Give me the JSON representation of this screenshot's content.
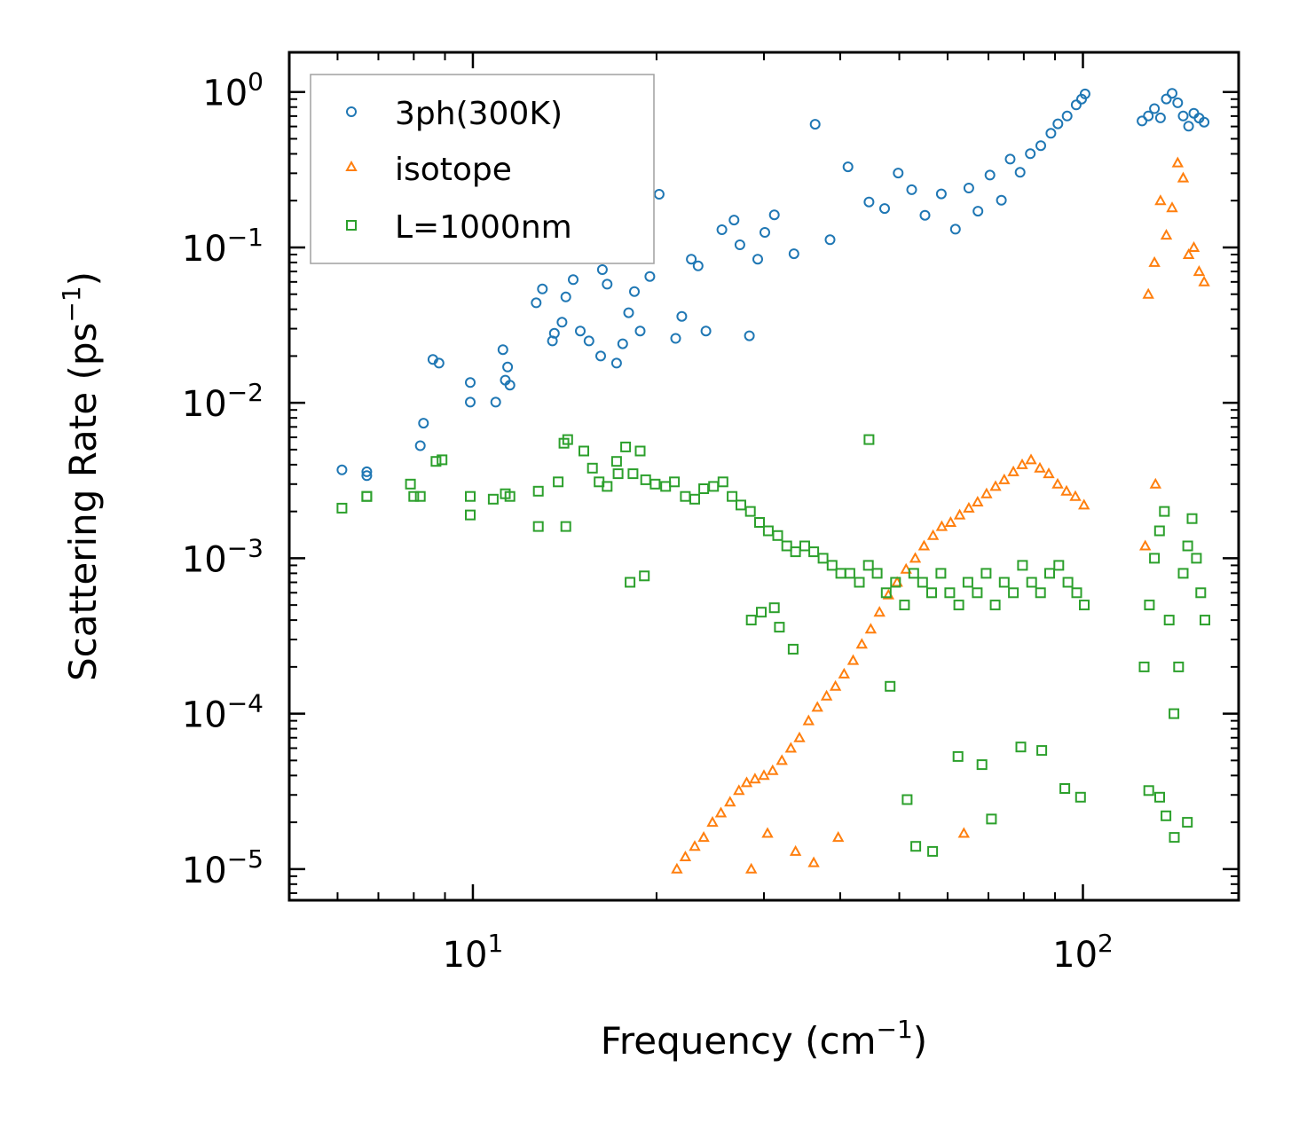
{
  "chart_data": {
    "type": "scatter",
    "title": "",
    "xlabel": "Frequency (cm",
    "xlabel_sup": "−1",
    "xlabel_suffix": ")",
    "ylabel": "Scattering Rate (ps",
    "ylabel_sup": "−1",
    "ylabel_suffix": ")",
    "xscale": "log",
    "yscale": "log",
    "xlim": [
      5.0,
      180.0
    ],
    "ylim": [
      6.3e-06,
      1.8
    ],
    "x_ticks": [
      {
        "value": 10,
        "base": "10",
        "exp": "1"
      },
      {
        "value": 100,
        "base": "10",
        "exp": "2"
      }
    ],
    "y_ticks": [
      {
        "value": 1,
        "base": "10",
        "exp": "0"
      },
      {
        "value": 0.1,
        "base": "10",
        "exp": "−1"
      },
      {
        "value": 0.01,
        "base": "10",
        "exp": "−2"
      },
      {
        "value": 0.001,
        "base": "10",
        "exp": "−3"
      },
      {
        "value": 0.0001,
        "base": "10",
        "exp": "−4"
      },
      {
        "value": 1e-05,
        "base": "10",
        "exp": "−5"
      }
    ],
    "legend_position": "top-left",
    "grid": false,
    "series": [
      {
        "name": "3ph(300K)",
        "color": "#1f77b4",
        "marker": "circle",
        "x": [
          6.1,
          6.7,
          6.7,
          8.2,
          8.3,
          8.6,
          8.8,
          9.9,
          9.9,
          10.9,
          11.2,
          11.3,
          11.4,
          11.5,
          12.7,
          13.0,
          13.5,
          13.6,
          14.0,
          14.2,
          14.6,
          15.0,
          15.5,
          16.2,
          16.3,
          16.6,
          17.2,
          17.6,
          18.0,
          18.4,
          18.8,
          19.5,
          20.2,
          21.5,
          22.0,
          22.8,
          23.4,
          24.1,
          25.6,
          26.8,
          27.4,
          28.4,
          29.3,
          30.1,
          31.2,
          33.6,
          36.4,
          38.5,
          41.2,
          44.6,
          47.3,
          49.8,
          52.4,
          55.1,
          58.6,
          61.8,
          65.0,
          67.3,
          70.4,
          73.5,
          76.0,
          78.9,
          82.0,
          85.3,
          88.6,
          91.0,
          94.2,
          97.5,
          99.5,
          100.8,
          125.0,
          128.0,
          131.0,
          134.0,
          137.0,
          140.0,
          143.0,
          146.0,
          149.0,
          152.0,
          155.0,
          158.0
        ],
        "y": [
          0.0037,
          0.0034,
          0.0036,
          0.0053,
          0.0074,
          0.019,
          0.018,
          0.0101,
          0.0135,
          0.0101,
          0.022,
          0.014,
          0.017,
          0.013,
          0.044,
          0.054,
          0.025,
          0.028,
          0.033,
          0.048,
          0.062,
          0.029,
          0.025,
          0.02,
          0.072,
          0.058,
          0.018,
          0.024,
          0.038,
          0.052,
          0.029,
          0.065,
          0.22,
          0.026,
          0.036,
          0.084,
          0.076,
          0.029,
          0.13,
          0.15,
          0.104,
          0.027,
          0.084,
          0.125,
          0.162,
          0.091,
          0.62,
          0.112,
          0.33,
          0.196,
          0.178,
          0.301,
          0.235,
          0.161,
          0.221,
          0.131,
          0.241,
          0.171,
          0.292,
          0.201,
          0.37,
          0.304,
          0.401,
          0.452,
          0.542,
          0.624,
          0.701,
          0.826,
          0.901,
          0.972,
          0.651,
          0.702,
          0.781,
          0.682,
          0.902,
          0.981,
          0.852,
          0.701,
          0.602,
          0.73,
          0.68,
          0.64
        ]
      },
      {
        "name": "isotope",
        "color": "#ff7f0e",
        "marker": "triangle",
        "x": [
          21.6,
          22.3,
          23.1,
          23.9,
          24.7,
          25.5,
          26.4,
          27.3,
          28.1,
          29.0,
          30.0,
          31.0,
          32.1,
          33.2,
          34.3,
          35.5,
          36.7,
          38.0,
          39.3,
          40.6,
          42.0,
          43.4,
          44.9,
          46.4,
          48.0,
          49.6,
          51.3,
          53.1,
          54.9,
          56.8,
          58.7,
          60.7,
          62.8,
          65.0,
          67.2,
          69.5,
          71.9,
          74.3,
          76.9,
          79.5,
          82.2,
          85.0,
          87.9,
          90.9,
          94.0,
          97.2,
          100.4,
          128.0,
          131.0,
          134.0,
          137.0,
          140.0,
          143.0,
          146.0,
          149.0,
          152.0,
          155.0,
          158.0,
          28.6,
          30.4,
          33.8,
          36.2,
          39.7,
          63.8,
          126.5,
          131.5
        ],
        "y": [
          1e-05,
          1.2e-05,
          1.4e-05,
          1.6e-05,
          2e-05,
          2.3e-05,
          2.7e-05,
          3.2e-05,
          3.6e-05,
          3.8e-05,
          4e-05,
          4.3e-05,
          5e-05,
          6e-05,
          7e-05,
          9e-05,
          0.00011,
          0.00013,
          0.00015,
          0.00018,
          0.00022,
          0.00028,
          0.00035,
          0.00045,
          0.00058,
          0.0007,
          0.00085,
          0.001,
          0.0012,
          0.0014,
          0.0016,
          0.0017,
          0.0019,
          0.0021,
          0.0023,
          0.0026,
          0.0029,
          0.0032,
          0.0036,
          0.004,
          0.0043,
          0.0038,
          0.0035,
          0.003,
          0.0027,
          0.0025,
          0.0022,
          0.05,
          0.08,
          0.2,
          0.12,
          0.18,
          0.35,
          0.28,
          0.09,
          0.1,
          0.07,
          0.06,
          1e-05,
          1.7e-05,
          1.3e-05,
          1.1e-05,
          1.6e-05,
          1.7e-05,
          0.0012,
          0.003
        ]
      },
      {
        "name": "L=1000nm",
        "color": "#2ca02c",
        "marker": "square",
        "x": [
          6.1,
          6.7,
          6.7,
          7.9,
          8.0,
          8.2,
          8.7,
          8.9,
          9.9,
          9.9,
          10.8,
          11.3,
          11.5,
          12.8,
          13.8,
          14.1,
          14.3,
          15.2,
          15.7,
          16.1,
          16.6,
          17.2,
          17.8,
          18.3,
          18.8,
          19.2,
          19.9,
          20.7,
          21.4,
          22.3,
          23.1,
          23.9,
          24.8,
          25.7,
          26.6,
          27.5,
          28.5,
          29.5,
          30.5,
          31.6,
          32.7,
          33.8,
          35.0,
          36.2,
          37.5,
          38.8,
          40.1,
          41.5,
          43.0,
          44.5,
          46.0,
          47.6,
          49.3,
          51.0,
          52.8,
          54.6,
          56.5,
          58.5,
          60.5,
          62.6,
          64.8,
          67.1,
          69.4,
          71.8,
          74.3,
          76.9,
          79.6,
          82.4,
          85.2,
          88.2,
          91.3,
          94.5,
          97.7,
          100.5,
          126.0,
          128.5,
          131.0,
          133.5,
          136.0,
          138.5,
          141.0,
          143.5,
          146.0,
          148.5,
          151.0,
          153.5,
          156.0,
          158.5,
          28.6,
          29.7,
          31.2,
          31.8,
          33.5,
          44.6,
          48.3,
          51.5,
          53.2,
          56.7,
          62.4,
          68.3,
          70.8,
          79.1,
          85.6,
          93.4,
          99.1,
          128.2,
          133.6,
          136.8,
          141.2,
          148.3,
          18.1,
          19.1,
          17.3,
          14.2,
          12.8
        ],
        "y": [
          0.0021,
          0.0025,
          0.0025,
          0.003,
          0.0025,
          0.0025,
          0.0042,
          0.0043,
          0.0025,
          0.0019,
          0.0024,
          0.0026,
          0.0025,
          0.0027,
          0.0031,
          0.0055,
          0.0058,
          0.0049,
          0.0038,
          0.0031,
          0.0029,
          0.0042,
          0.0052,
          0.0035,
          0.0049,
          0.0032,
          0.003,
          0.0029,
          0.0031,
          0.0025,
          0.0024,
          0.0028,
          0.0029,
          0.0031,
          0.0025,
          0.0022,
          0.002,
          0.0017,
          0.0015,
          0.0014,
          0.0012,
          0.0011,
          0.0012,
          0.0011,
          0.001,
          0.0009,
          0.0008,
          0.0008,
          0.0007,
          0.0009,
          0.0008,
          0.0006,
          0.0007,
          0.0005,
          0.0008,
          0.0007,
          0.0006,
          0.0008,
          0.0006,
          0.0005,
          0.0007,
          0.0006,
          0.0008,
          0.0005,
          0.0007,
          0.0006,
          0.0009,
          0.0007,
          0.0006,
          0.0008,
          0.0009,
          0.0007,
          0.0006,
          0.0005,
          0.0002,
          0.0005,
          0.001,
          0.0015,
          0.002,
          0.0004,
          0.0001,
          0.0002,
          0.0008,
          0.0012,
          0.0018,
          0.001,
          0.0006,
          0.0004,
          0.0004,
          0.00045,
          0.00048,
          0.00036,
          0.00026,
          0.0058,
          0.00015,
          2.8e-05,
          1.4e-05,
          1.3e-05,
          5.3e-05,
          4.7e-05,
          2.1e-05,
          6.1e-05,
          5.8e-05,
          3.3e-05,
          2.9e-05,
          3.2e-05,
          2.9e-05,
          2.2e-05,
          1.6e-05,
          2e-05,
          0.0007,
          0.00077,
          0.0035,
          0.0016,
          0.0016
        ]
      }
    ]
  }
}
